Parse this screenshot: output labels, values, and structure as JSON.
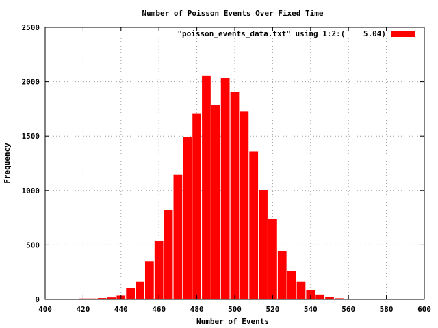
{
  "chart_data": {
    "type": "bar",
    "title": "Number of Poisson Events Over Fixed Time",
    "xlabel": "Number of Events",
    "ylabel": "Frequency",
    "xlim": [
      400,
      600
    ],
    "ylim": [
      0,
      2500
    ],
    "xticks": [
      "400",
      "420",
      "440",
      "460",
      "480",
      "500",
      "520",
      "540",
      "560",
      "580",
      "600"
    ],
    "yticks": [
      "0",
      "500",
      "1000",
      "1500",
      "2000",
      "2500"
    ],
    "grid": true,
    "legend_position": "top-right",
    "bin_width": 5.04,
    "bar_color": "#ff0000",
    "series": [
      {
        "name": "\"poisson_events_data.txt\" using 1:2:(    5.04)",
        "x": [
          420,
          425,
          430,
          435,
          440,
          445,
          450,
          455,
          460,
          465,
          470,
          475,
          480,
          485,
          490,
          495,
          500,
          505,
          510,
          515,
          520,
          525,
          530,
          535,
          540,
          545,
          550,
          555,
          560,
          565,
          570,
          575,
          580,
          585,
          590
        ],
        "values": [
          8,
          8,
          12,
          18,
          35,
          105,
          165,
          350,
          540,
          820,
          1145,
          1495,
          1705,
          2055,
          1785,
          2035,
          1905,
          1725,
          1360,
          1005,
          740,
          445,
          260,
          165,
          85,
          45,
          20,
          10,
          5,
          3,
          2,
          1,
          1,
          1,
          1
        ]
      }
    ]
  }
}
